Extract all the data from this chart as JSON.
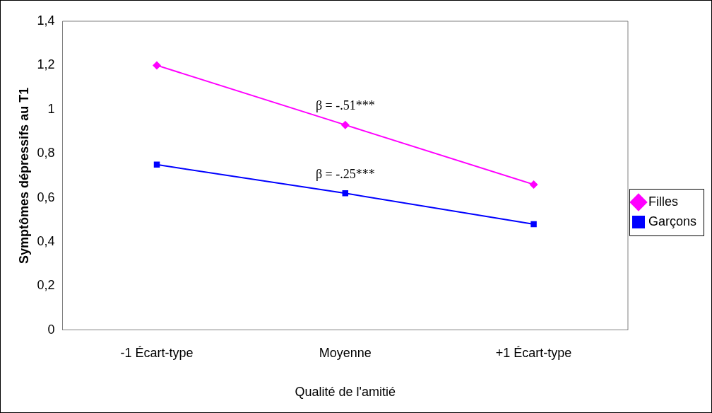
{
  "chart_data": {
    "type": "line",
    "xlabel": "Qualité de l'amitié",
    "ylabel": "Symptômes dépressifs au T1",
    "categories": [
      "-1 Écart-type",
      "Moyenne",
      "+1 Écart-type"
    ],
    "series": [
      {
        "name": "Filles",
        "color": "#ff00ff",
        "values": [
          1.2,
          0.93,
          0.66
        ],
        "marker": "diamond"
      },
      {
        "name": "Garçons",
        "color": "#0000ff",
        "values": [
          0.75,
          0.62,
          0.48
        ],
        "marker": "square"
      }
    ],
    "ylim": [
      0,
      1.4
    ],
    "yticks": [
      0,
      {
        "value": 0.2,
        "label": "0,2"
      },
      {
        "value": 0.4,
        "label": "0,4"
      },
      {
        "value": 0.6,
        "label": "0,6"
      },
      {
        "value": 0.8,
        "label": "0,8"
      },
      1,
      {
        "value": 1.2,
        "label": "1,2"
      },
      {
        "value": 1.4,
        "label": "1,4"
      }
    ],
    "annotations": [
      "β = -.51***",
      "β = -.25***"
    ],
    "grid": false,
    "legend": "right",
    "line_style": "solid"
  }
}
